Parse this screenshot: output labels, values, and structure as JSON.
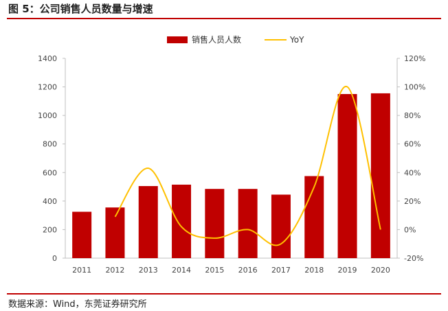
{
  "figure": {
    "title": "图 5：公司销售人员数量与增速",
    "source": "数据来源：Wind，东莞证券研究所"
  },
  "colors": {
    "bar": "#c00000",
    "line": "#ffc000",
    "axis": "#bfbfbf",
    "rule": "#c00000"
  },
  "chart_data": {
    "type": "bar",
    "title": "",
    "categories": [
      "2011",
      "2012",
      "2013",
      "2014",
      "2015",
      "2016",
      "2017",
      "2018",
      "2019",
      "2020"
    ],
    "series": [
      {
        "name": "销售人员人数",
        "type": "bar",
        "axis": "left",
        "values": [
          325,
          355,
          505,
          515,
          485,
          485,
          445,
          575,
          1150,
          1155
        ]
      },
      {
        "name": "YoY",
        "type": "line",
        "axis": "right",
        "smooth": true,
        "values": [
          null,
          9,
          43,
          2,
          -6,
          0,
          -10,
          30,
          100,
          0
        ]
      }
    ],
    "y_left": {
      "min": 0,
      "max": 1400,
      "step": 200,
      "ticks": [
        "0",
        "200",
        "400",
        "600",
        "800",
        "1000",
        "1200",
        "1400"
      ]
    },
    "y_right": {
      "min": -20,
      "max": 120,
      "step": 20,
      "ticks": [
        "-20%",
        "0%",
        "20%",
        "40%",
        "60%",
        "80%",
        "100%",
        "120%"
      ]
    },
    "legend": {
      "position": "top-center"
    },
    "grid": false
  }
}
